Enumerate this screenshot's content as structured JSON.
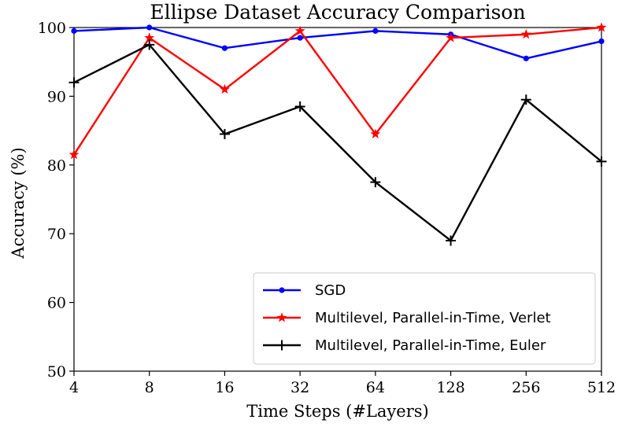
{
  "chart_data": {
    "type": "line",
    "title": "Ellipse Dataset Accuracy Comparison",
    "xlabel": "Time Steps (#Layers)",
    "ylabel": "Accuracy (%)",
    "categories": [
      "4",
      "8",
      "16",
      "32",
      "64",
      "128",
      "256",
      "512"
    ],
    "yticks": [
      "50",
      "60",
      "70",
      "80",
      "90",
      "100"
    ],
    "ylim": [
      50,
      100
    ],
    "grid": false,
    "legend_position": "lower-right",
    "series": [
      {
        "name": "SGD",
        "color": "#0000ff",
        "marker": "dot",
        "values": [
          99.5,
          100.0,
          97.0,
          98.5,
          99.5,
          99.0,
          95.5,
          98.0
        ]
      },
      {
        "name": "Multilevel, Parallel-in-Time, Verlet",
        "color": "#ff0000",
        "marker": "star",
        "values": [
          81.5,
          98.5,
          91.0,
          99.5,
          84.5,
          98.5,
          99.0,
          100.0
        ]
      },
      {
        "name": "Multilevel, Parallel-in-Time, Euler",
        "color": "#000000",
        "marker": "plus",
        "values": [
          92.0,
          97.5,
          84.5,
          88.5,
          77.5,
          69.0,
          89.5,
          80.5
        ]
      }
    ]
  }
}
